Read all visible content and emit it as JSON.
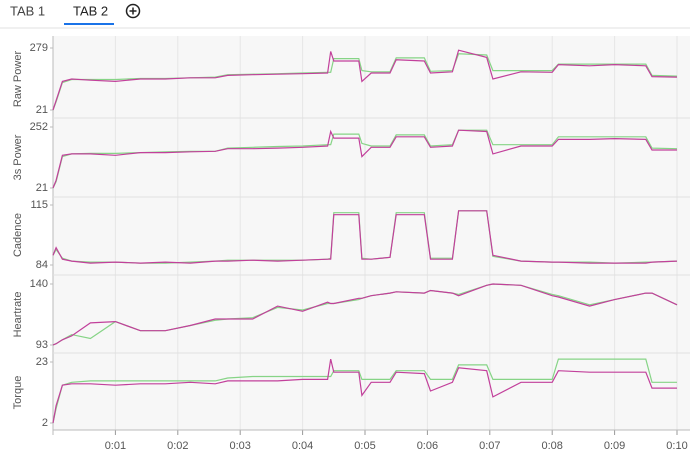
{
  "tabs": [
    "TAB 1",
    "TAB 2"
  ],
  "chart_data": [
    {
      "type": "line",
      "ylabel": "Raw Power",
      "ylim": [
        21,
        279
      ],
      "yticks": [
        21,
        279
      ],
      "x": [
        0,
        0.05,
        0.15,
        0.3,
        0.6,
        1.0,
        1.4,
        1.8,
        2.2,
        2.6,
        2.8,
        3.2,
        3.6,
        4.0,
        4.4,
        4.45,
        4.5,
        4.9,
        4.95,
        5.1,
        5.4,
        5.5,
        5.95,
        6.05,
        6.4,
        6.5,
        6.95,
        7.05,
        7.5,
        8.0,
        8.1,
        8.6,
        9.0,
        9.5,
        9.6,
        10.0
      ],
      "series": [
        {
          "color": "#c2409b",
          "values": [
            21,
            60,
            140,
            150,
            145,
            140,
            150,
            150,
            155,
            155,
            165,
            168,
            170,
            172,
            175,
            265,
            225,
            225,
            140,
            175,
            175,
            230,
            225,
            175,
            180,
            270,
            240,
            150,
            180,
            178,
            210,
            205,
            210,
            205,
            160,
            158
          ]
        },
        {
          "color": "#86d486",
          "values": [
            21,
            55,
            135,
            148,
            148,
            148,
            152,
            152,
            155,
            158,
            168,
            170,
            172,
            175,
            178,
            178,
            235,
            235,
            185,
            180,
            180,
            238,
            238,
            182,
            185,
            255,
            250,
            185,
            185,
            185,
            212,
            212,
            212,
            212,
            165,
            162
          ]
        }
      ]
    },
    {
      "type": "line",
      "ylabel": "3s Power",
      "ylim": [
        21,
        252
      ],
      "yticks": [
        21,
        252
      ],
      "x": [
        0,
        0.05,
        0.15,
        0.3,
        0.6,
        1.0,
        1.4,
        1.8,
        2.2,
        2.6,
        2.8,
        3.2,
        3.6,
        4.0,
        4.4,
        4.45,
        4.5,
        4.9,
        4.95,
        5.1,
        5.4,
        5.5,
        5.95,
        6.05,
        6.4,
        6.5,
        6.95,
        7.05,
        7.5,
        8.0,
        8.1,
        8.6,
        9.0,
        9.5,
        9.6,
        10.0
      ],
      "series": [
        {
          "color": "#c2409b",
          "values": [
            21,
            50,
            145,
            150,
            150,
            145,
            155,
            155,
            158,
            160,
            170,
            170,
            172,
            175,
            180,
            235,
            210,
            210,
            140,
            175,
            175,
            215,
            215,
            175,
            180,
            240,
            235,
            150,
            180,
            180,
            205,
            205,
            208,
            205,
            165,
            165
          ]
        },
        {
          "color": "#86d486",
          "values": [
            21,
            45,
            140,
            150,
            152,
            152,
            155,
            158,
            160,
            160,
            172,
            175,
            178,
            180,
            185,
            185,
            225,
            225,
            190,
            180,
            180,
            222,
            222,
            180,
            185,
            240,
            240,
            185,
            185,
            185,
            215,
            215,
            215,
            215,
            172,
            170
          ]
        }
      ]
    },
    {
      "type": "line",
      "ylabel": "Cadence",
      "ylim": [
        84,
        115
      ],
      "yticks": [
        84,
        115
      ],
      "x": [
        0,
        0.05,
        0.15,
        0.3,
        0.6,
        1.0,
        1.4,
        1.8,
        2.2,
        2.6,
        2.8,
        3.2,
        3.6,
        4.0,
        4.4,
        4.45,
        4.5,
        4.9,
        4.95,
        5.1,
        5.4,
        5.5,
        5.95,
        6.05,
        6.4,
        6.5,
        6.95,
        7.05,
        7.5,
        8.0,
        8.1,
        8.6,
        9.0,
        9.5,
        9.6,
        10.0
      ],
      "series": [
        {
          "color": "#c2409b",
          "values": [
            89,
            93,
            87,
            86,
            85,
            85.5,
            85,
            85.5,
            85,
            86,
            86,
            86.5,
            86,
            86.5,
            87,
            87,
            110,
            110,
            87,
            87,
            88,
            110,
            110,
            87,
            87,
            112,
            112,
            89,
            86,
            85.5,
            85.5,
            85,
            85,
            85,
            85.5,
            86
          ]
        },
        {
          "color": "#86d486",
          "values": [
            89,
            92,
            87.5,
            86,
            85.5,
            85.5,
            85,
            85,
            85.5,
            86,
            86.5,
            86.5,
            86.5,
            86.5,
            87,
            87.5,
            111,
            111,
            87.5,
            87,
            88,
            111,
            111,
            87.5,
            87.5,
            112,
            112,
            88.5,
            86,
            85.5,
            85.5,
            85.5,
            85,
            85.5,
            85.5,
            86
          ]
        }
      ]
    },
    {
      "type": "line",
      "ylabel": "Heartrate",
      "ylim": [
        93,
        140
      ],
      "yticks": [
        93,
        140
      ],
      "x": [
        0,
        0.05,
        0.15,
        0.3,
        0.6,
        1.0,
        1.4,
        1.8,
        2.2,
        2.6,
        2.8,
        3.2,
        3.6,
        4.0,
        4.4,
        4.45,
        4.5,
        4.9,
        4.95,
        5.1,
        5.4,
        5.5,
        5.95,
        6.05,
        6.4,
        6.5,
        6.95,
        7.05,
        7.5,
        8.0,
        8.1,
        8.6,
        9.0,
        9.5,
        9.6,
        10.0
      ],
      "series": [
        {
          "color": "#c2409b",
          "values": [
            93,
            94,
            97,
            100,
            110,
            111,
            104,
            104,
            108,
            113,
            113,
            113,
            123,
            119,
            126,
            125,
            125,
            129,
            129,
            131,
            133,
            134,
            133,
            135,
            133,
            131,
            139,
            140,
            139,
            131,
            130,
            123,
            128,
            133,
            133,
            124
          ]
        },
        {
          "color": "#86d486",
          "values": [
            93,
            94,
            97,
            101,
            98,
            111,
            104,
            104,
            108,
            112,
            113,
            114,
            122,
            120,
            125,
            125,
            125,
            128,
            129,
            131,
            133,
            134,
            133,
            135,
            133,
            132,
            139,
            140,
            139,
            132,
            131,
            124,
            128,
            133,
            133,
            124
          ]
        }
      ]
    },
    {
      "type": "line",
      "ylabel": "Torque",
      "ylim": [
        2,
        23
      ],
      "yticks": [
        2,
        23
      ],
      "x": [
        0,
        0.05,
        0.15,
        0.3,
        0.6,
        1.0,
        1.4,
        1.8,
        2.2,
        2.6,
        2.8,
        3.2,
        3.6,
        4.0,
        4.4,
        4.45,
        4.5,
        4.9,
        4.95,
        5.1,
        5.4,
        5.5,
        5.95,
        6.05,
        6.4,
        6.5,
        6.95,
        7.05,
        7.5,
        8.0,
        8.1,
        8.6,
        9.0,
        9.5,
        9.6,
        10.0
      ],
      "series": [
        {
          "color": "#c2409b",
          "values": [
            2,
            8,
            15,
            15.5,
            15.5,
            15,
            15.5,
            15.5,
            16,
            15.5,
            16.5,
            16.5,
            16.5,
            17,
            17,
            24,
            19.5,
            19.5,
            11.5,
            16,
            16,
            19.5,
            19,
            13,
            16,
            21,
            20,
            11,
            16,
            16,
            20,
            19.5,
            19.5,
            19.5,
            14,
            14
          ]
        },
        {
          "color": "#86d486",
          "values": [
            2,
            7,
            15,
            16,
            16.5,
            16.5,
            16.5,
            16.5,
            16.5,
            16.5,
            17.5,
            18,
            18,
            18,
            18,
            18,
            20,
            20,
            17,
            17,
            17,
            20,
            20,
            17,
            17,
            22,
            22,
            17,
            17,
            17,
            24,
            24,
            24,
            24,
            16,
            16
          ]
        }
      ],
      "xlim": [
        0,
        10
      ],
      "xticks": [
        {
          "value": 1,
          "label": "0:01"
        },
        {
          "value": 2,
          "label": "0:02"
        },
        {
          "value": 3,
          "label": "0:03"
        },
        {
          "value": 4,
          "label": "0:04"
        },
        {
          "value": 5,
          "label": "0:05"
        },
        {
          "value": 6,
          "label": "0:06"
        },
        {
          "value": 7,
          "label": "0:07"
        },
        {
          "value": 8,
          "label": "0:08"
        },
        {
          "value": 9,
          "label": "0:09"
        },
        {
          "value": 10,
          "label": "0:10"
        }
      ]
    }
  ]
}
